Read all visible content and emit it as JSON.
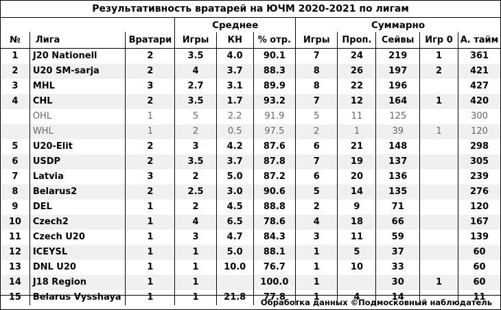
{
  "title": "Результативность вратарей на ЮЧМ 2020-2021  по лигам",
  "groups": {
    "average": "Среднее",
    "total": "Суммарно"
  },
  "headers": [
    "№",
    "Лига",
    "Вратари",
    "Игры",
    "КН",
    "% отр.",
    "Игры",
    "Проп.",
    "Сейвы",
    "Игр 0",
    "А. тайм"
  ],
  "rows": [
    [
      "1",
      "J20 Nationell",
      "2",
      "3.5",
      "4.0",
      "90.1",
      "7",
      "24",
      "219",
      "1",
      "361"
    ],
    [
      "2",
      "U20 SM-sarja",
      "2",
      "4",
      "3.7",
      "88.3",
      "8",
      "26",
      "197",
      "2",
      "421"
    ],
    [
      "3",
      "MHL",
      "3",
      "2.7",
      "3.1",
      "89.9",
      "8",
      "22",
      "196",
      "",
      "427"
    ],
    [
      "4",
      "CHL",
      "2",
      "3.5",
      "1.7",
      "93.2",
      "7",
      "12",
      "164",
      "1",
      "420"
    ],
    [
      "",
      "OHL",
      "1",
      "5",
      "2.2",
      "91.9",
      "5",
      "11",
      "125",
      "",
      "300"
    ],
    [
      "",
      "WHL",
      "1",
      "2",
      "0.5",
      "97.5",
      "2",
      "1",
      "39",
      "1",
      "120"
    ],
    [
      "5",
      "U20-Elit",
      "2",
      "3",
      "4.2",
      "87.6",
      "6",
      "21",
      "148",
      "",
      "298"
    ],
    [
      "6",
      "USDP",
      "2",
      "3.5",
      "3.7",
      "87.8",
      "7",
      "19",
      "137",
      "",
      "305"
    ],
    [
      "7",
      "Latvia",
      "3",
      "2",
      "5.0",
      "87.2",
      "6",
      "20",
      "136",
      "",
      "239"
    ],
    [
      "8",
      "Belarus2",
      "2",
      "2.5",
      "3.0",
      "90.6",
      "5",
      "14",
      "135",
      "",
      "276"
    ],
    [
      "9",
      "DEL",
      "1",
      "2",
      "4.5",
      "88.8",
      "2",
      "9",
      "71",
      "",
      "120"
    ],
    [
      "10",
      "Czech2",
      "1",
      "4",
      "6.5",
      "78.6",
      "4",
      "18",
      "66",
      "",
      "167"
    ],
    [
      "11",
      "Czech U20",
      "1",
      "3",
      "4.7",
      "84.3",
      "3",
      "11",
      "59",
      "",
      "139"
    ],
    [
      "12",
      "ICEYSL",
      "1",
      "1",
      "5.0",
      "88.1",
      "1",
      "5",
      "37",
      "",
      "60"
    ],
    [
      "13",
      "DNL U20",
      "1",
      "1",
      "10.0",
      "76.7",
      "1",
      "10",
      "33",
      "",
      "60"
    ],
    [
      "14",
      "J18 Region",
      "1",
      "1",
      "",
      "100.0",
      "1",
      "",
      "30",
      "1",
      "60"
    ],
    [
      "15",
      "Belarus Vysshaya",
      "1",
      "1",
      "21.8",
      "77.8",
      "1",
      "4",
      "14",
      "",
      "11"
    ]
  ],
  "sub_rows": [
    4,
    5
  ],
  "footer": "Обработка данных ©Подмосковный наблюдатель"
}
